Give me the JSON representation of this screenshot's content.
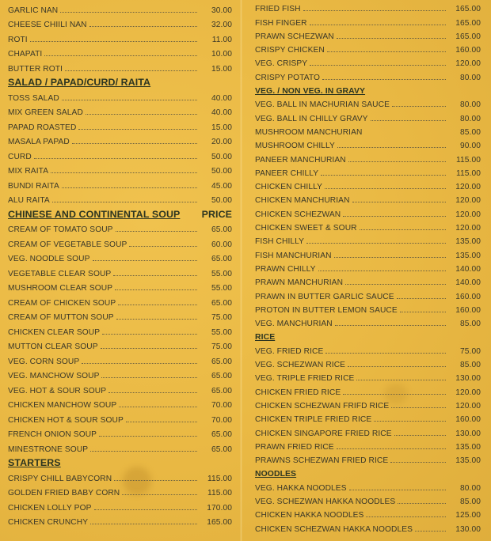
{
  "colors": {
    "background": "#e9b843",
    "text": "#3b3828",
    "heading": "#2d3520"
  },
  "left_column": [
    {
      "type": "item",
      "name": "GARLIC NAN",
      "price": "30.00"
    },
    {
      "type": "item",
      "name": "CHEESE CHIILI NAN",
      "price": "32.00"
    },
    {
      "type": "item",
      "name": "ROTI",
      "price": "11.00"
    },
    {
      "type": "item",
      "name": "CHAPATI",
      "price": "10.00"
    },
    {
      "type": "item",
      "name": "BUTTER ROTI",
      "price": "15.00"
    },
    {
      "type": "heading",
      "name": "SALAD / PAPAD/CURD/ RAITA"
    },
    {
      "type": "item",
      "name": "TOSS SALAD",
      "price": "40.00"
    },
    {
      "type": "item",
      "name": "MIX GREEN SALAD",
      "price": "40.00"
    },
    {
      "type": "item",
      "name": "PAPAD ROASTED",
      "price": "15.00"
    },
    {
      "type": "item",
      "name": "MASALA PAPAD",
      "price": "20.00"
    },
    {
      "type": "item",
      "name": "CURD",
      "price": "50.00"
    },
    {
      "type": "item",
      "name": "MIX RAITA",
      "price": "50.00"
    },
    {
      "type": "item",
      "name": "BUNDI RAITA",
      "price": "45.00"
    },
    {
      "type": "item",
      "name": "ALU RAITA",
      "price": "50.00"
    },
    {
      "type": "heading",
      "name": "CHINESE AND CONTINENTAL SOUP",
      "price": "PRICE"
    },
    {
      "type": "item",
      "name": "CREAM OF TOMATO SOUP",
      "price": "65.00"
    },
    {
      "type": "item",
      "name": "CREAM OF VEGETABLE SOUP",
      "price": "60.00"
    },
    {
      "type": "item",
      "name": "VEG. NOODLE SOUP",
      "price": "65.00"
    },
    {
      "type": "item",
      "name": "VEGETABLE CLEAR SOUP",
      "price": "55.00"
    },
    {
      "type": "item",
      "name": "MUSHROOM CLEAR SOUP",
      "price": "55.00"
    },
    {
      "type": "item",
      "name": "CREAM OF CHICKEN SOUP",
      "price": "65.00"
    },
    {
      "type": "item",
      "name": "CREAM OF MUTTON SOUP",
      "price": "75.00"
    },
    {
      "type": "item",
      "name": "CHICKEN CLEAR SOUP",
      "price": "55.00"
    },
    {
      "type": "item",
      "name": "MUTTON CLEAR SOUP",
      "price": "75.00"
    },
    {
      "type": "item",
      "name": "VEG. CORN SOUP",
      "price": "65.00"
    },
    {
      "type": "item",
      "name": "VEG. MANCHOW SOUP",
      "price": "65.00"
    },
    {
      "type": "item",
      "name": "VEG. HOT & SOUR SOUP",
      "price": "65.00"
    },
    {
      "type": "item",
      "name": "CHICKEN MANCHOW SOUP",
      "price": "70.00"
    },
    {
      "type": "item",
      "name": "CHICKEN HOT & SOUR SOUP",
      "price": "70.00"
    },
    {
      "type": "item",
      "name": "FRENCH ONION SOUP",
      "price": "65.00"
    },
    {
      "type": "item",
      "name": "MINESTRONE SOUP",
      "price": "65.00"
    },
    {
      "type": "heading",
      "name": "STARTERS"
    },
    {
      "type": "item",
      "name": "CRISPY CHILL BABYCORN",
      "price": "115.00"
    },
    {
      "type": "item",
      "name": "GOLDEN FRIED BABY CORN",
      "price": "115.00"
    },
    {
      "type": "item",
      "name": "CHICKEN LOLLY POP",
      "price": "170.00"
    },
    {
      "type": "item",
      "name": "CHICKEN CRUNCHY",
      "price": "165.00"
    }
  ],
  "right_column": [
    {
      "type": "item",
      "name": "FRIED FISH",
      "price": "165.00"
    },
    {
      "type": "item",
      "name": "FISH FINGER",
      "price": "165.00"
    },
    {
      "type": "item",
      "name": "PRAWN SCHEZWAN",
      "price": "165.00"
    },
    {
      "type": "item",
      "name": "CRISPY CHICKEN",
      "price": "160.00"
    },
    {
      "type": "item",
      "name": "VEG. CRISPY",
      "price": "120.00"
    },
    {
      "type": "item",
      "name": "CRISPY POTATO",
      "price": "80.00"
    },
    {
      "type": "heading",
      "name": "VEG. / NON VEG. IN GRAVY"
    },
    {
      "type": "item",
      "name": "VEG. BALL IN MACHURIAN SAUCE",
      "price": "80.00"
    },
    {
      "type": "item",
      "name": "VEG. BALL IN CHILLY GRAVY",
      "price": "80.00"
    },
    {
      "type": "item",
      "name": "MUSHROOM MANCHURIAN",
      "price": "85.00",
      "noleader": true
    },
    {
      "type": "item",
      "name": "MUSHROOM CHILLY",
      "price": "90.00"
    },
    {
      "type": "item",
      "name": "PANEER MANCHURIAN",
      "price": "115.00"
    },
    {
      "type": "item",
      "name": "PANEER CHILLY",
      "price": "115.00"
    },
    {
      "type": "item",
      "name": "CHICKEN CHILLY",
      "price": "120.00"
    },
    {
      "type": "item",
      "name": "CHICKEN MANCHURIAN",
      "price": "120.00"
    },
    {
      "type": "item",
      "name": "CHICKEN SCHEZWAN",
      "price": "120.00"
    },
    {
      "type": "item",
      "name": "CHICKEN SWEET & SOUR",
      "price": "120.00"
    },
    {
      "type": "item",
      "name": "FISH CHILLY",
      "price": "135.00"
    },
    {
      "type": "item",
      "name": "FISH MANCHURIAN",
      "price": "135.00"
    },
    {
      "type": "item",
      "name": "PRAWN CHILLY",
      "price": "140.00"
    },
    {
      "type": "item",
      "name": "PRAWN MANCHURIAN",
      "price": "140.00"
    },
    {
      "type": "item",
      "name": "PRAWN IN BUTTER GARLIC SAUCE",
      "price": "160.00"
    },
    {
      "type": "item",
      "name": "PROTON IN BUTTER LEMON SAUCE",
      "price": "160.00"
    },
    {
      "type": "item",
      "name": "VEG. MANCHURIAN",
      "price": "85.00"
    },
    {
      "type": "heading",
      "name": "RICE"
    },
    {
      "type": "item",
      "name": "VEG. FRIED RICE",
      "price": "75.00"
    },
    {
      "type": "item",
      "name": "VEG. SCHEZWAN RICE",
      "price": "85.00"
    },
    {
      "type": "item",
      "name": "VEG. TRIPLE FRIED RICE",
      "price": "130.00"
    },
    {
      "type": "item",
      "name": "CHICKEN FRIED RICE",
      "price": "120.00"
    },
    {
      "type": "item",
      "name": "CHICKEN SCHEZWAN FRIFD RICE",
      "price": "120.00"
    },
    {
      "type": "item",
      "name": "CHICKEN TRIPLE FRIED RICE",
      "price": "160.00"
    },
    {
      "type": "item",
      "name": "CHICKEN SINGAPORE FRIED RICE",
      "price": "130.00"
    },
    {
      "type": "item",
      "name": "PRAWN FRIED RICE",
      "price": "135.00"
    },
    {
      "type": "item",
      "name": "PRAWNS SCHEZWAN FRIED RICE",
      "price": "135.00"
    },
    {
      "type": "heading",
      "name": "NOODLES"
    },
    {
      "type": "item",
      "name": "VEG. HAKKA NOODLES",
      "price": "80.00"
    },
    {
      "type": "item",
      "name": "VEG. SCHEZWAN HAKKA NOODLES",
      "price": "85.00"
    },
    {
      "type": "item",
      "name": "CHICKEN HAKKA NOODLES",
      "price": "125.00"
    },
    {
      "type": "item",
      "name": "CHICKEN SCHEZWAN HAKKA NOODLES",
      "price": "130.00"
    }
  ]
}
